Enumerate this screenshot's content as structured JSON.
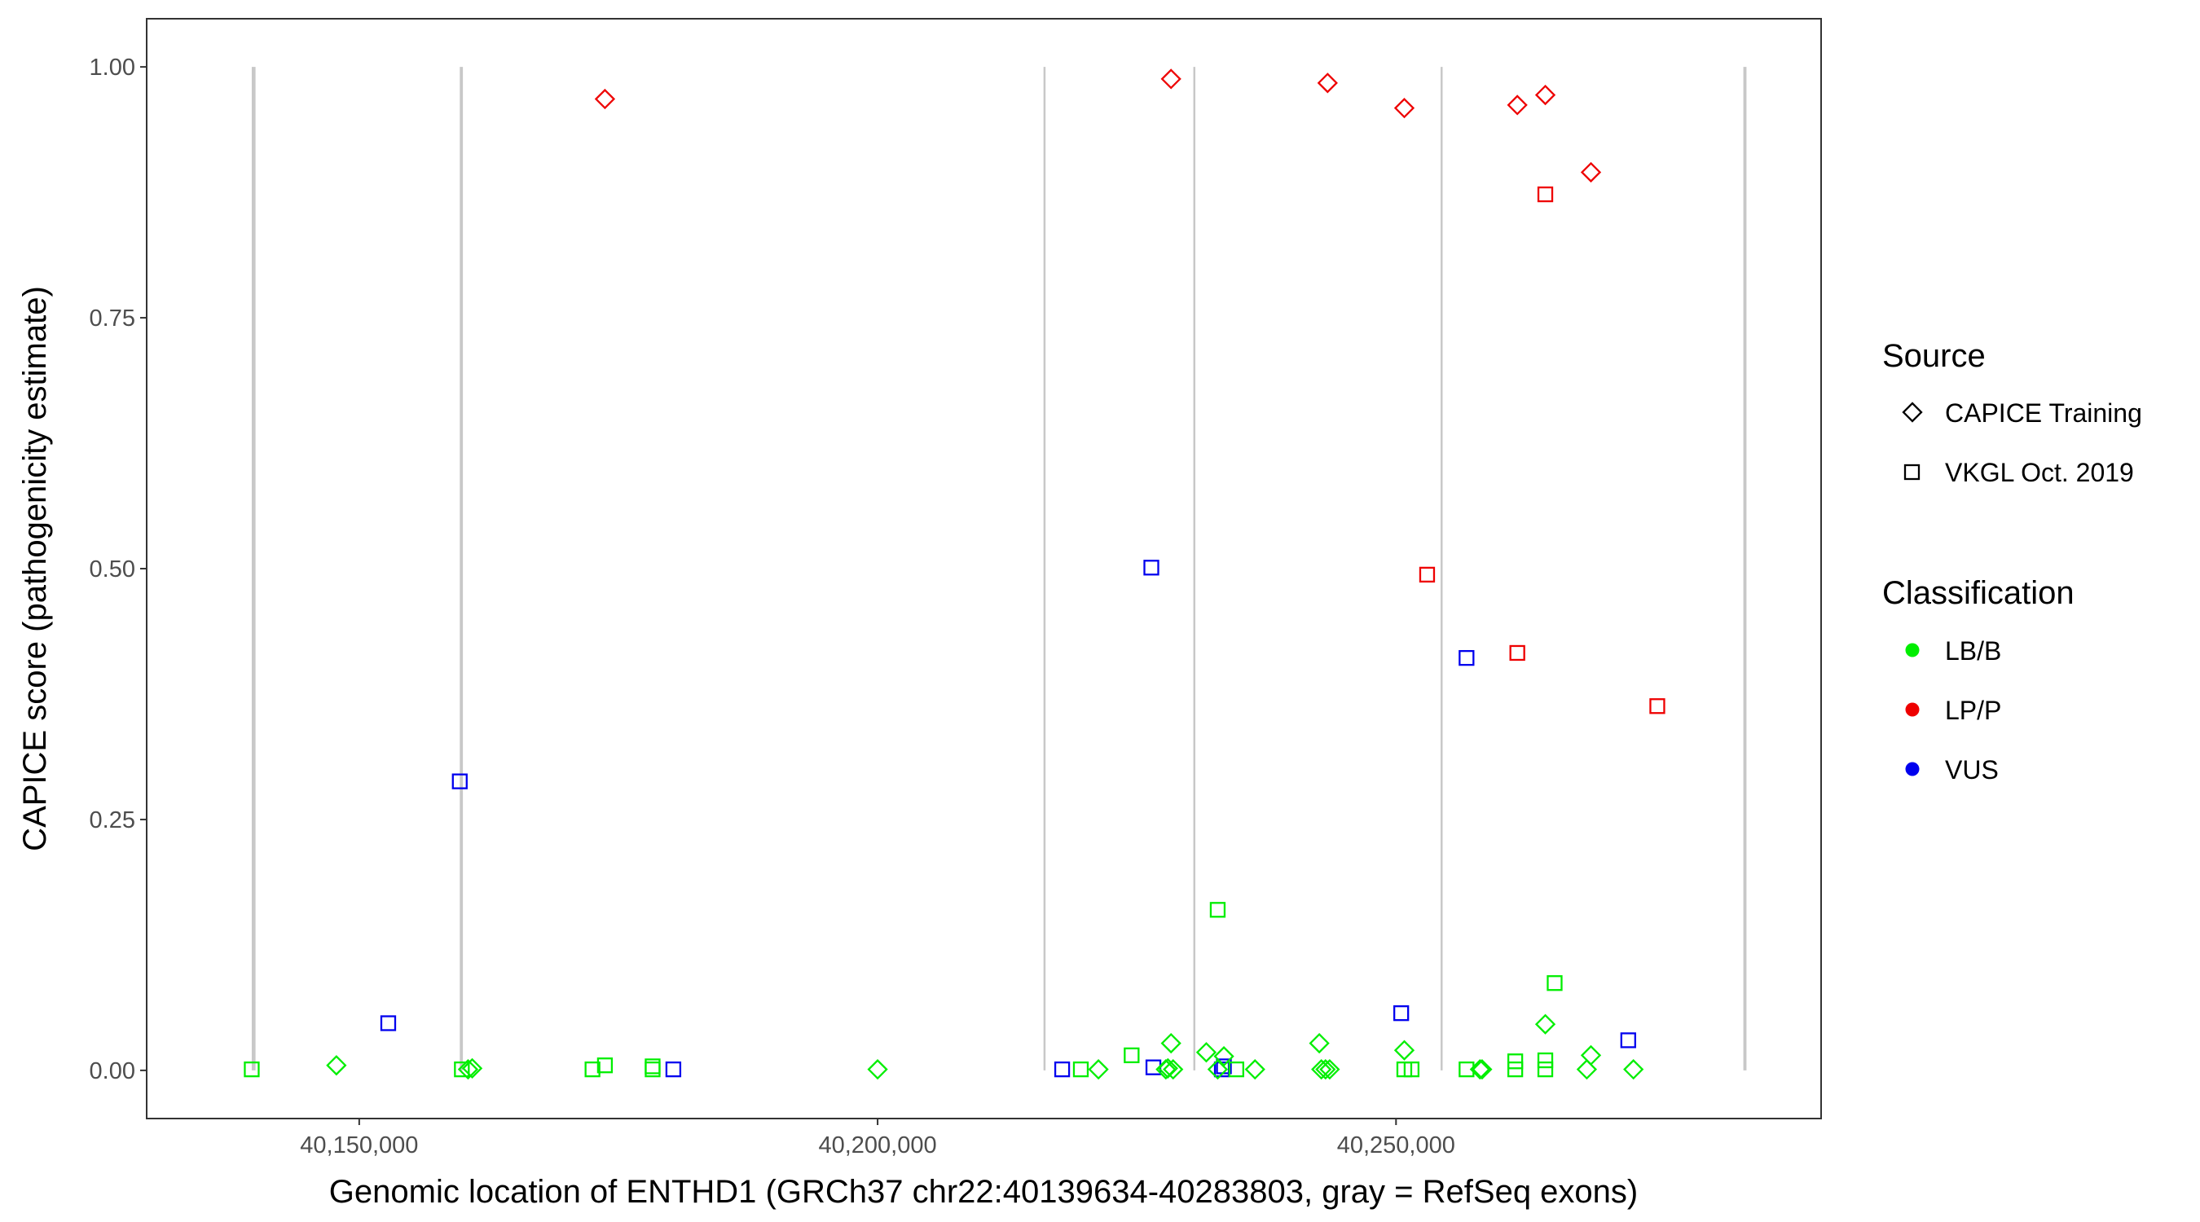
{
  "chart_data": {
    "type": "scatter",
    "xlabel": "Genomic location of ENTHD1 (GRCh37 chr22:40139634-40283803, gray = RefSeq exons)",
    "ylabel": "CAPICE score (pathogenicity estimate)",
    "xlim": [
      40129500,
      40291000
    ],
    "ylim": [
      -0.048,
      1.048
    ],
    "x_ticks": [
      40150000,
      40200000,
      40250000
    ],
    "x_tick_labels": [
      "40,150,000",
      "40,200,000",
      "40,250,000"
    ],
    "y_ticks": [
      0,
      0.25,
      0.5,
      0.75,
      1.0
    ],
    "y_tick_labels": [
      "0.00",
      "0.25",
      "0.50",
      "0.75",
      "1.00"
    ],
    "grid": false,
    "legend_position": "right",
    "exons": [
      {
        "start": 40139634,
        "end": 40140000
      },
      {
        "start": 40159700,
        "end": 40160000
      },
      {
        "start": 40216000,
        "end": 40216150
      },
      {
        "start": 40230450,
        "end": 40230600
      },
      {
        "start": 40254300,
        "end": 40254450
      },
      {
        "start": 40283500,
        "end": 40283803
      }
    ],
    "exon_color": "#c8c8c8",
    "legend": {
      "source_title": "Source",
      "source_items": [
        {
          "label": "CAPICE Training",
          "shape": "diamond"
        },
        {
          "label": "VKGL Oct. 2019",
          "shape": "square"
        }
      ],
      "classification_title": "Classification",
      "classification_items": [
        {
          "label": "LB/B",
          "color": "#00ee00"
        },
        {
          "label": "LP/P",
          "color": "#ee0000"
        },
        {
          "label": "VUS",
          "color": "#0000ee"
        }
      ]
    },
    "colors": {
      "LB/B": "#00ee00",
      "LP/P": "#ee0000",
      "VUS": "#0000ee"
    },
    "series": [
      {
        "source": "CAPICE Training",
        "classification": "LP/P",
        "points": [
          [
            40173700,
            0.968
          ],
          [
            40228300,
            0.988
          ],
          [
            40243400,
            0.984
          ],
          [
            40250800,
            0.959
          ],
          [
            40261700,
            0.962
          ],
          [
            40264400,
            0.972
          ],
          [
            40268800,
            0.895
          ]
        ]
      },
      {
        "source": "VKGL Oct. 2019",
        "classification": "LP/P",
        "points": [
          [
            40264400,
            0.873
          ],
          [
            40253000,
            0.494
          ],
          [
            40261700,
            0.416
          ],
          [
            40275200,
            0.363
          ]
        ]
      },
      {
        "source": "VKGL Oct. 2019",
        "classification": "VUS",
        "points": [
          [
            40226400,
            0.501
          ],
          [
            40256800,
            0.411
          ],
          [
            40159700,
            0.288
          ],
          [
            40152800,
            0.047
          ],
          [
            40250500,
            0.057
          ],
          [
            40272400,
            0.03
          ],
          [
            40180300,
            0.001
          ],
          [
            40217800,
            0.001
          ],
          [
            40226600,
            0.003
          ],
          [
            40233200,
            0.001
          ],
          [
            40233400,
            0.004
          ]
        ]
      },
      {
        "source": "VKGL Oct. 2019",
        "classification": "LB/B",
        "points": [
          [
            40232800,
            0.16
          ],
          [
            40265300,
            0.087
          ],
          [
            40224500,
            0.015
          ],
          [
            40139634,
            0.001
          ],
          [
            40159900,
            0.001
          ],
          [
            40172500,
            0.001
          ],
          [
            40173700,
            0.005
          ],
          [
            40178300,
            0.001
          ],
          [
            40178300,
            0.004
          ],
          [
            40219600,
            0.001
          ],
          [
            40234600,
            0.001
          ],
          [
            40250800,
            0.001
          ],
          [
            40251500,
            0.001
          ],
          [
            40256800,
            0.001
          ],
          [
            40261500,
            0.001
          ],
          [
            40261500,
            0.009
          ],
          [
            40264400,
            0.001
          ],
          [
            40264400,
            0.01
          ]
        ]
      },
      {
        "source": "CAPICE Training",
        "classification": "LB/B",
        "points": [
          [
            40147800,
            0.005
          ],
          [
            40160500,
            0.001
          ],
          [
            40160900,
            0.002
          ],
          [
            40200000,
            0.001
          ],
          [
            40221300,
            0.001
          ],
          [
            40227800,
            0.001
          ],
          [
            40228000,
            0.002
          ],
          [
            40228300,
            0.027
          ],
          [
            40228500,
            0.001
          ],
          [
            40231700,
            0.018
          ],
          [
            40232800,
            0.001
          ],
          [
            40233400,
            0.014
          ],
          [
            40236400,
            0.001
          ],
          [
            40242600,
            0.027
          ],
          [
            40242800,
            0.001
          ],
          [
            40243200,
            0.001
          ],
          [
            40243600,
            0.001
          ],
          [
            40250800,
            0.02
          ],
          [
            40258100,
            0.001
          ],
          [
            40258300,
            0.001
          ],
          [
            40264400,
            0.046
          ],
          [
            40268400,
            0.001
          ],
          [
            40268800,
            0.015
          ],
          [
            40272900,
            0.001
          ]
        ]
      }
    ]
  }
}
